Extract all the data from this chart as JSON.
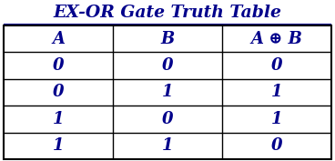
{
  "title": "EX-OR Gate Truth Table",
  "title_color": "#00008B",
  "title_fontsize": 13.5,
  "headers": [
    "A",
    "B",
    "A ⊕ B"
  ],
  "rows": [
    [
      "0",
      "0",
      "0"
    ],
    [
      "0",
      "1",
      "1"
    ],
    [
      "1",
      "0",
      "1"
    ],
    [
      "1",
      "1",
      "0"
    ]
  ],
  "text_color": "#00008B",
  "bg_color": "#FFFFFF",
  "border_color": "#000000",
  "cell_fontsize": 13,
  "header_fontsize": 13,
  "fig_width": 3.68,
  "fig_height": 1.77,
  "dpi": 100
}
